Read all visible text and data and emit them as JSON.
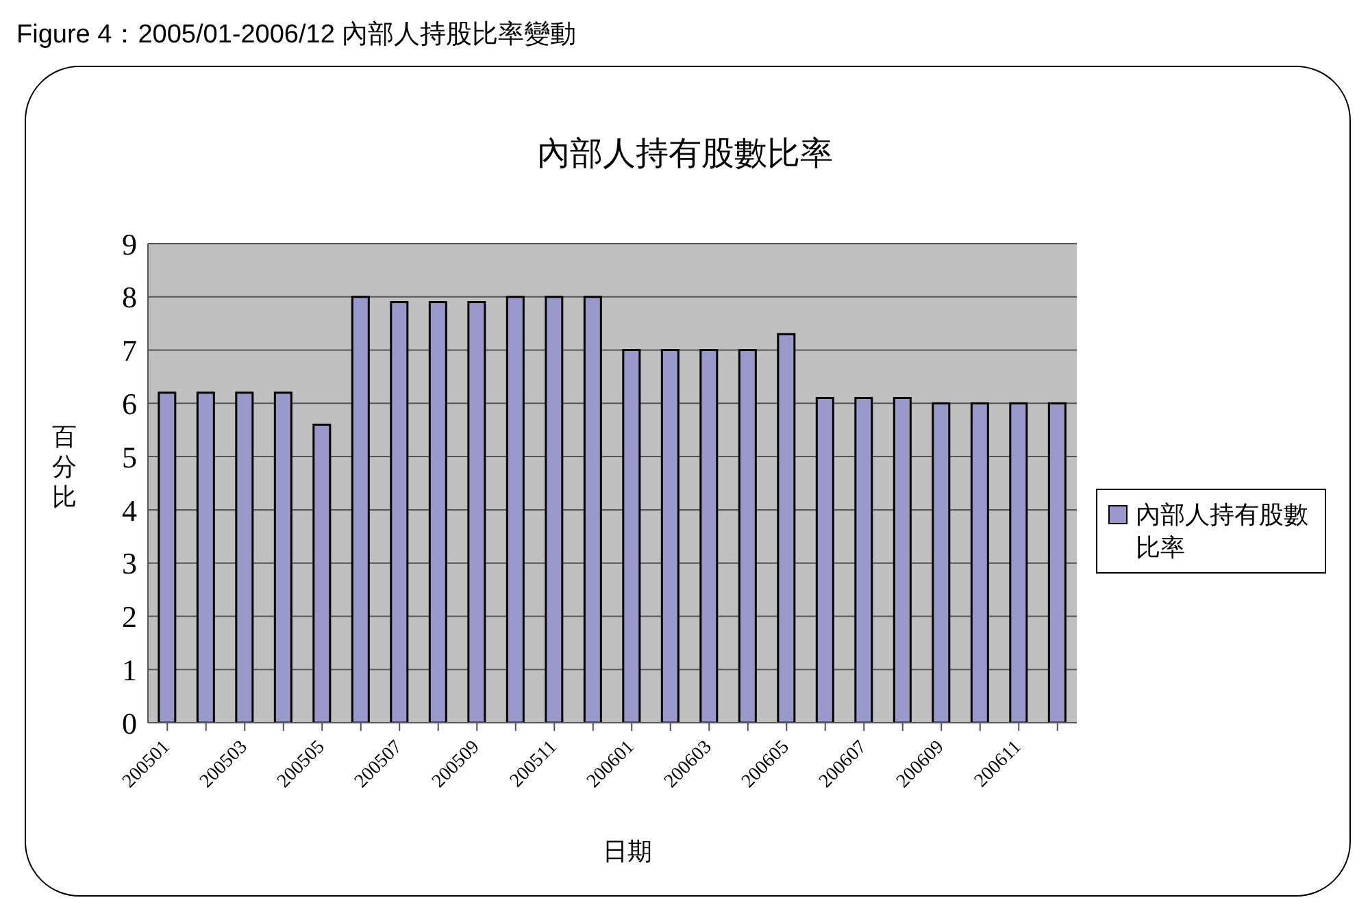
{
  "chart_data": {
    "type": "bar",
    "title": "內部人持有股數比率",
    "xlabel": "日期",
    "ylabel": "百分比",
    "annotations": [
      "Figure 4：2005/01-2006/12 內部人持股比率變動"
    ],
    "categories": [
      "200501",
      null,
      "200503",
      null,
      "200505",
      null,
      "200507",
      null,
      "200509",
      null,
      "200511",
      null,
      "200601",
      null,
      "200603",
      null,
      "200605",
      null,
      "200607",
      null,
      "200609",
      null,
      "200611",
      null
    ],
    "series": [
      {
        "name": "內部人持有股數比率",
        "color": "#9999cc",
        "values": [
          6.2,
          6.2,
          6.2,
          6.2,
          5.6,
          8,
          7.9,
          7.9,
          7.9,
          8,
          8,
          8,
          7,
          7,
          7,
          7,
          7.3,
          6.1,
          6.1,
          6.1,
          6,
          6,
          6,
          6
        ]
      }
    ],
    "ylim": [
      0,
      9
    ],
    "yticks": [
      0,
      1,
      2,
      3,
      4,
      5,
      6,
      7,
      8,
      9
    ],
    "grid": "y",
    "legend": "right"
  }
}
